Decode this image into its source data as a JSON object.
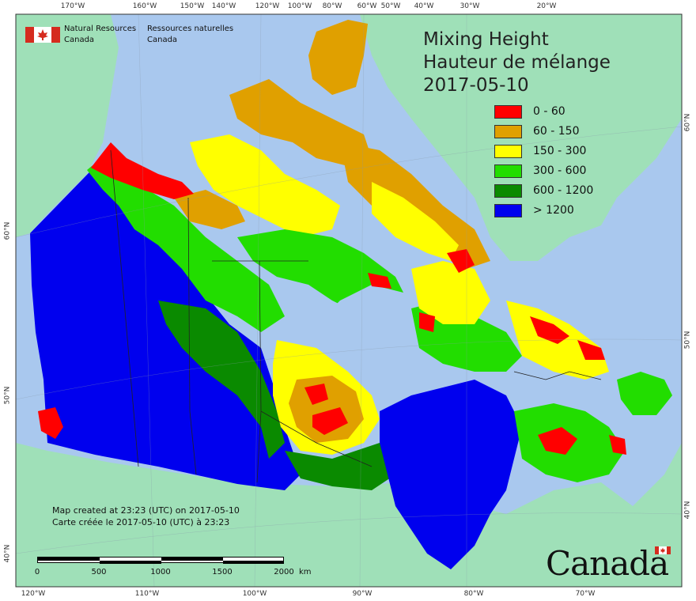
{
  "agency": {
    "en_line1": "Natural Resources",
    "en_line2": "Canada",
    "fr_line1": "Ressources naturelles",
    "fr_line2": "Canada",
    "flag_icon": "canada-flag-icon"
  },
  "title": {
    "line1": "Mixing Height",
    "line2": "Hauteur de mélange",
    "date": "2017-05-10"
  },
  "legend": {
    "items": [
      {
        "label": "0 - 60",
        "color": "#ff0000"
      },
      {
        "label": "60 - 150",
        "color": "#e0a000"
      },
      {
        "label": "150 - 300",
        "color": "#ffff00"
      },
      {
        "label": "300 - 600",
        "color": "#22dd00"
      },
      {
        "label": "600 - 1200",
        "color": "#0a8a00"
      },
      {
        "label": "> 1200",
        "color": "#0000ee"
      }
    ]
  },
  "created": {
    "en": "Map created at 23:23 (UTC) on 2017-05-10",
    "fr": "Carte créée le 2017-05-10 (UTC) à 23:23"
  },
  "scalebar": {
    "labels": [
      "0",
      "500",
      "1000",
      "1500",
      "2000"
    ],
    "unit": "km"
  },
  "graticule": {
    "top": [
      "170°W",
      "160°W",
      "150°W",
      "140°W",
      "120°W",
      "100°W",
      "80°W",
      "60°W",
      "50°W",
      "40°W",
      "30°W",
      "20°W"
    ],
    "bottom": [
      "120°W",
      "110°W",
      "100°W",
      "90°W",
      "80°W",
      "70°W"
    ],
    "left": [
      "60°N",
      "50°N",
      "40°N"
    ],
    "right": [
      "60°N",
      "50°N",
      "40°N"
    ]
  },
  "wordmark": {
    "text": "Canada",
    "flag_icon": "canada-flag-icon"
  },
  "colors": {
    "ocean": "#a9c8ee",
    "land_other": "#9fe0b8",
    "lake": "#b6cde8",
    "border": "#222222"
  }
}
